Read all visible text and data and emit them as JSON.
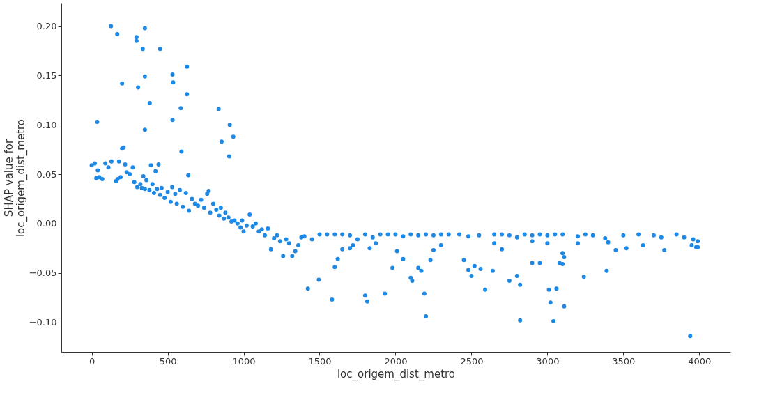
{
  "chart_data": {
    "type": "scatter",
    "xlabel": "loc_origem_dist_metro",
    "ylabel": "SHAP value for\nloc_origem_dist_metro",
    "xlim": [
      -200,
      4205
    ],
    "ylim": [
      -0.13,
      0.223
    ],
    "xticks": [
      0,
      500,
      1000,
      1500,
      2000,
      2500,
      3000,
      3500,
      4000
    ],
    "yticks": [
      {
        "value": -0.1,
        "label": "−0.10"
      },
      {
        "value": -0.05,
        "label": "−0.05"
      },
      {
        "value": 0,
        "label": "0.00"
      },
      {
        "value": 0.05,
        "label": "0.05"
      },
      {
        "value": 0.1,
        "label": "0.10"
      },
      {
        "value": 0.15,
        "label": "0.15"
      },
      {
        "value": 0.2,
        "label": "0.20"
      }
    ],
    "grid": false,
    "marker": "circle",
    "series": [
      {
        "color": "#1e88e5",
        "x": [
          127,
          168,
          295,
          295,
          350,
          336,
          450,
          305,
          200,
          350,
          382,
          350,
          36,
          532,
          536,
          627,
          627,
          586,
          532,
          591,
          836,
          909,
          932,
          855,
          905,
          636,
          0,
          20,
          30,
          40,
          50,
          70,
          90,
          110,
          130,
          160,
          170,
          180,
          190,
          200,
          210,
          220,
          230,
          250,
          270,
          280,
          300,
          320,
          330,
          340,
          350,
          360,
          380,
          390,
          400,
          410,
          420,
          430,
          440,
          450,
          460,
          480,
          500,
          520,
          530,
          550,
          560,
          580,
          600,
          620,
          640,
          660,
          680,
          700,
          720,
          740,
          760,
          770,
          780,
          800,
          820,
          840,
          850,
          870,
          880,
          900,
          920,
          940,
          960,
          980,
          990,
          1000,
          1020,
          1040,
          1060,
          1080,
          1100,
          1120,
          1140,
          1160,
          1180,
          1200,
          1220,
          1240,
          1260,
          1280,
          1300,
          1320,
          1340,
          1360,
          1380,
          1400,
          1450,
          1500,
          1550,
          1600,
          1650,
          1700,
          1750,
          1800,
          1850,
          1900,
          1950,
          2000,
          2050,
          2100,
          2150,
          2200,
          2250,
          2300,
          2350,
          2420,
          2480,
          2550,
          2650,
          2700,
          2750,
          2800,
          2850,
          2900,
          2950,
          3000,
          3050,
          3100,
          3200,
          3250,
          3300,
          3380,
          3400,
          3500,
          3600,
          3700,
          3750,
          3850,
          3900,
          3960,
          3990,
          3990,
          1650,
          1720,
          1830,
          1870,
          2010,
          2250,
          2300,
          2650,
          2700,
          2900,
          3000,
          3200,
          1423,
          1495,
          1582,
          1600,
          1620,
          1700,
          1800,
          1814,
          1930,
          1980,
          2050,
          2100,
          2110,
          2150,
          2170,
          2190,
          2200,
          2230,
          2450,
          2480,
          2500,
          2520,
          2560,
          2590,
          2640,
          2750,
          2800,
          2820,
          2820,
          2900,
          2950,
          3010,
          3020,
          3040,
          3060,
          3080,
          3100,
          3110,
          3100,
          3110,
          3240,
          3390,
          3450,
          3520,
          3630,
          3770,
          3940,
          3950,
          3980
        ],
        "values": [
          0.2,
          0.192,
          0.189,
          0.185,
          0.198,
          0.177,
          0.177,
          0.138,
          0.142,
          0.149,
          0.122,
          0.095,
          0.103,
          0.151,
          0.143,
          0.159,
          0.131,
          0.117,
          0.105,
          0.073,
          0.116,
          0.1,
          0.088,
          0.083,
          0.068,
          0.049,
          0.059,
          0.061,
          0.046,
          0.054,
          0.047,
          0.045,
          0.061,
          0.057,
          0.063,
          0.043,
          0.045,
          0.063,
          0.047,
          0.076,
          0.077,
          0.06,
          0.052,
          0.05,
          0.057,
          0.042,
          0.037,
          0.04,
          0.036,
          0.048,
          0.035,
          0.044,
          0.034,
          0.059,
          0.04,
          0.031,
          0.053,
          0.035,
          0.06,
          0.029,
          0.036,
          0.026,
          0.032,
          0.022,
          0.037,
          0.03,
          0.02,
          0.034,
          0.017,
          0.031,
          0.013,
          0.025,
          0.02,
          0.018,
          0.024,
          0.016,
          0.03,
          0.033,
          0.011,
          0.02,
          0.014,
          0.008,
          0.016,
          0.005,
          0.011,
          0.006,
          0.002,
          0.003,
          0.0,
          -0.004,
          0.003,
          -0.008,
          -0.002,
          0.009,
          -0.003,
          0.0,
          -0.008,
          -0.006,
          -0.012,
          -0.005,
          -0.026,
          -0.015,
          -0.012,
          -0.018,
          -0.033,
          -0.016,
          -0.02,
          -0.033,
          -0.028,
          -0.022,
          -0.014,
          -0.013,
          -0.016,
          -0.011,
          -0.011,
          -0.011,
          -0.011,
          -0.012,
          -0.016,
          -0.011,
          -0.014,
          -0.011,
          -0.011,
          -0.011,
          -0.013,
          -0.011,
          -0.012,
          -0.011,
          -0.012,
          -0.011,
          -0.011,
          -0.011,
          -0.013,
          -0.012,
          -0.011,
          -0.011,
          -0.012,
          -0.014,
          -0.011,
          -0.012,
          -0.011,
          -0.012,
          -0.011,
          -0.011,
          -0.013,
          -0.011,
          -0.012,
          -0.015,
          -0.019,
          -0.012,
          -0.011,
          -0.012,
          -0.014,
          -0.011,
          -0.014,
          -0.016,
          -0.018,
          -0.024,
          -0.026,
          -0.022,
          -0.025,
          -0.02,
          -0.028,
          -0.027,
          -0.022,
          -0.02,
          -0.026,
          -0.018,
          -0.02,
          -0.02,
          -0.066,
          -0.057,
          -0.077,
          -0.044,
          -0.036,
          -0.025,
          -0.073,
          -0.079,
          -0.071,
          -0.045,
          -0.036,
          -0.055,
          -0.058,
          -0.045,
          -0.048,
          -0.071,
          -0.094,
          -0.037,
          -0.037,
          -0.047,
          -0.053,
          -0.043,
          -0.046,
          -0.067,
          -0.048,
          -0.058,
          -0.053,
          -0.062,
          -0.098,
          -0.04,
          -0.04,
          -0.067,
          -0.08,
          -0.099,
          -0.066,
          -0.04,
          -0.041,
          -0.084,
          -0.03,
          -0.034,
          -0.054,
          -0.048,
          -0.027,
          -0.025,
          -0.022,
          -0.027,
          -0.114,
          -0.022,
          -0.024
        ]
      }
    ]
  }
}
